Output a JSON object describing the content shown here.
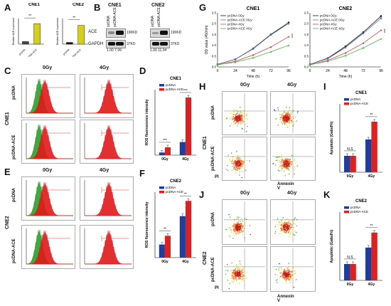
{
  "panels": {
    "A": "A",
    "B": "B",
    "C": "C",
    "D": "D",
    "E": "E",
    "F": "F",
    "G": "G",
    "H": "H",
    "I": "I",
    "J": "J",
    "K": "K"
  },
  "cells": {
    "cne1": "CNE1",
    "cne2": "CNE2"
  },
  "groups": {
    "pcdna": "pcDNA",
    "pcdna_ace": "pcDNA-ACE"
  },
  "doses": {
    "d0": "0Gy",
    "d4": "4Gy"
  },
  "blot": {
    "lanes": [
      "pcDNA",
      "pcDNA-ACE"
    ],
    "ace": "ACE",
    "gapdh": "GAPDH",
    "ace_kd": "190KD",
    "gapdh_kd": "37KD",
    "ratio_cne1": "1.00  7.99",
    "ratio_cne2": "1.00 11.04"
  },
  "axis": {
    "ace_expr": "Relative ACE expression",
    "ros": "ROS fluorescence intensity",
    "od": "OD value (450nm)",
    "time": "Time (h)",
    "apoptotic": "Apoptotic (Gated%)",
    "pi": "PI",
    "annexin": "Annexin V",
    "sig_ns": "N.S",
    "sig_2": "**",
    "sig_3": "***"
  },
  "colors": {
    "pcdna": "#1f3d9a",
    "ace": "#e02020",
    "ace_bar_a": "#d6cf1a",
    "hist_red": "#e01818",
    "hist_green": "#2aa02a"
  },
  "chart_data": [
    {
      "id": "A-CNE1",
      "type": "bar",
      "title": "CNE1",
      "ylabel": "Relative ACE expression",
      "categories": [
        "pcDNA",
        "pcDNA-ACE"
      ],
      "values": [
        1,
        8
      ],
      "ylim": [
        0,
        10
      ],
      "significance": "**"
    },
    {
      "id": "A-CNE2",
      "type": "bar",
      "title": "CNE2",
      "ylabel": "Relative ACE expression",
      "categories": [
        "pcDNA",
        "pcDNA-ACE"
      ],
      "values": [
        1,
        11
      ],
      "ylim": [
        0,
        15
      ],
      "significance": "**"
    },
    {
      "id": "D",
      "type": "bar",
      "title": "CNE1",
      "ylabel": "ROS fluorescence intensity",
      "categories": [
        "0Gy",
        "4Gy"
      ],
      "series": [
        {
          "name": "pcDNA",
          "values": [
            20,
            100
          ]
        },
        {
          "name": "pcDNA-ACE",
          "values": [
            60,
            440
          ]
        }
      ],
      "ylim": [
        0,
        500
      ],
      "significance": [
        "***",
        "***"
      ]
    },
    {
      "id": "F",
      "type": "bar",
      "title": "CNE2",
      "ylabel": "ROS fluorescence intensity",
      "categories": [
        "0Gy",
        "4Gy"
      ],
      "series": [
        {
          "name": "pcDNA",
          "values": [
            60,
            190
          ]
        },
        {
          "name": "pcDNA-ACE",
          "values": [
            100,
            260
          ]
        }
      ],
      "ylim": [
        0,
        300
      ],
      "significance": [
        "**",
        "**"
      ]
    },
    {
      "id": "G-CNE1",
      "type": "line",
      "title": "CNE1",
      "xlabel": "Time (h)",
      "ylabel": "OD value (450nm)",
      "x": [
        0,
        24,
        48,
        72,
        96
      ],
      "ylim": [
        0,
        2.5
      ],
      "series": [
        {
          "name": "pcDNA 0Gy",
          "values": [
            0.12,
            0.35,
            0.85,
            1.5,
            2.05
          ]
        },
        {
          "name": "pcDNA-ACE 0Gy",
          "values": [
            0.12,
            0.35,
            0.83,
            1.48,
            2.0
          ]
        },
        {
          "name": "pcDNA 4Gy",
          "values": [
            0.1,
            0.26,
            0.55,
            0.92,
            1.4
          ]
        },
        {
          "name": "pcDNA-ACE 4Gy",
          "values": [
            0.1,
            0.22,
            0.42,
            0.7,
            1.0
          ]
        }
      ],
      "significance": "***"
    },
    {
      "id": "G-CNE2",
      "type": "line",
      "title": "CNE2",
      "xlabel": "Time (h)",
      "ylabel": "OD value (450nm)",
      "x": [
        0,
        24,
        48,
        72,
        96
      ],
      "ylim": [
        0,
        2.5
      ],
      "series": [
        {
          "name": "pcDNA 0Gy",
          "values": [
            0.12,
            0.4,
            0.95,
            1.6,
            2.35
          ]
        },
        {
          "name": "pcDNA-ACE 0Gy",
          "values": [
            0.12,
            0.38,
            0.9,
            1.55,
            2.25
          ]
        },
        {
          "name": "pcDNA 4Gy",
          "values": [
            0.1,
            0.3,
            0.65,
            1.1,
            1.7
          ]
        },
        {
          "name": "pcDNA-ACE 4Gy",
          "values": [
            0.1,
            0.26,
            0.52,
            0.88,
            1.3
          ]
        }
      ],
      "significance": "***"
    },
    {
      "id": "I",
      "type": "bar",
      "title": "CNE1",
      "ylabel": "Apoptotic (Gated%)",
      "categories": [
        "0Gy",
        "4Gy"
      ],
      "series": [
        {
          "name": "pcDNA",
          "values": [
            12,
            24
          ]
        },
        {
          "name": "pcDNA-ACE",
          "values": [
            12,
            37
          ]
        }
      ],
      "ylim": [
        0,
        50
      ],
      "significance": [
        "N.S",
        "**"
      ]
    },
    {
      "id": "K",
      "type": "bar",
      "title": "CNE2",
      "ylabel": "Apoptotic (Gated%)",
      "categories": [
        "0Gy",
        "4Gy"
      ],
      "series": [
        {
          "name": "pcDNA",
          "values": [
            12,
            24
          ]
        },
        {
          "name": "pcDNA-ACE",
          "values": [
            12,
            35
          ]
        }
      ],
      "ylim": [
        0,
        50
      ],
      "significance": [
        "N.S",
        "**"
      ]
    }
  ]
}
